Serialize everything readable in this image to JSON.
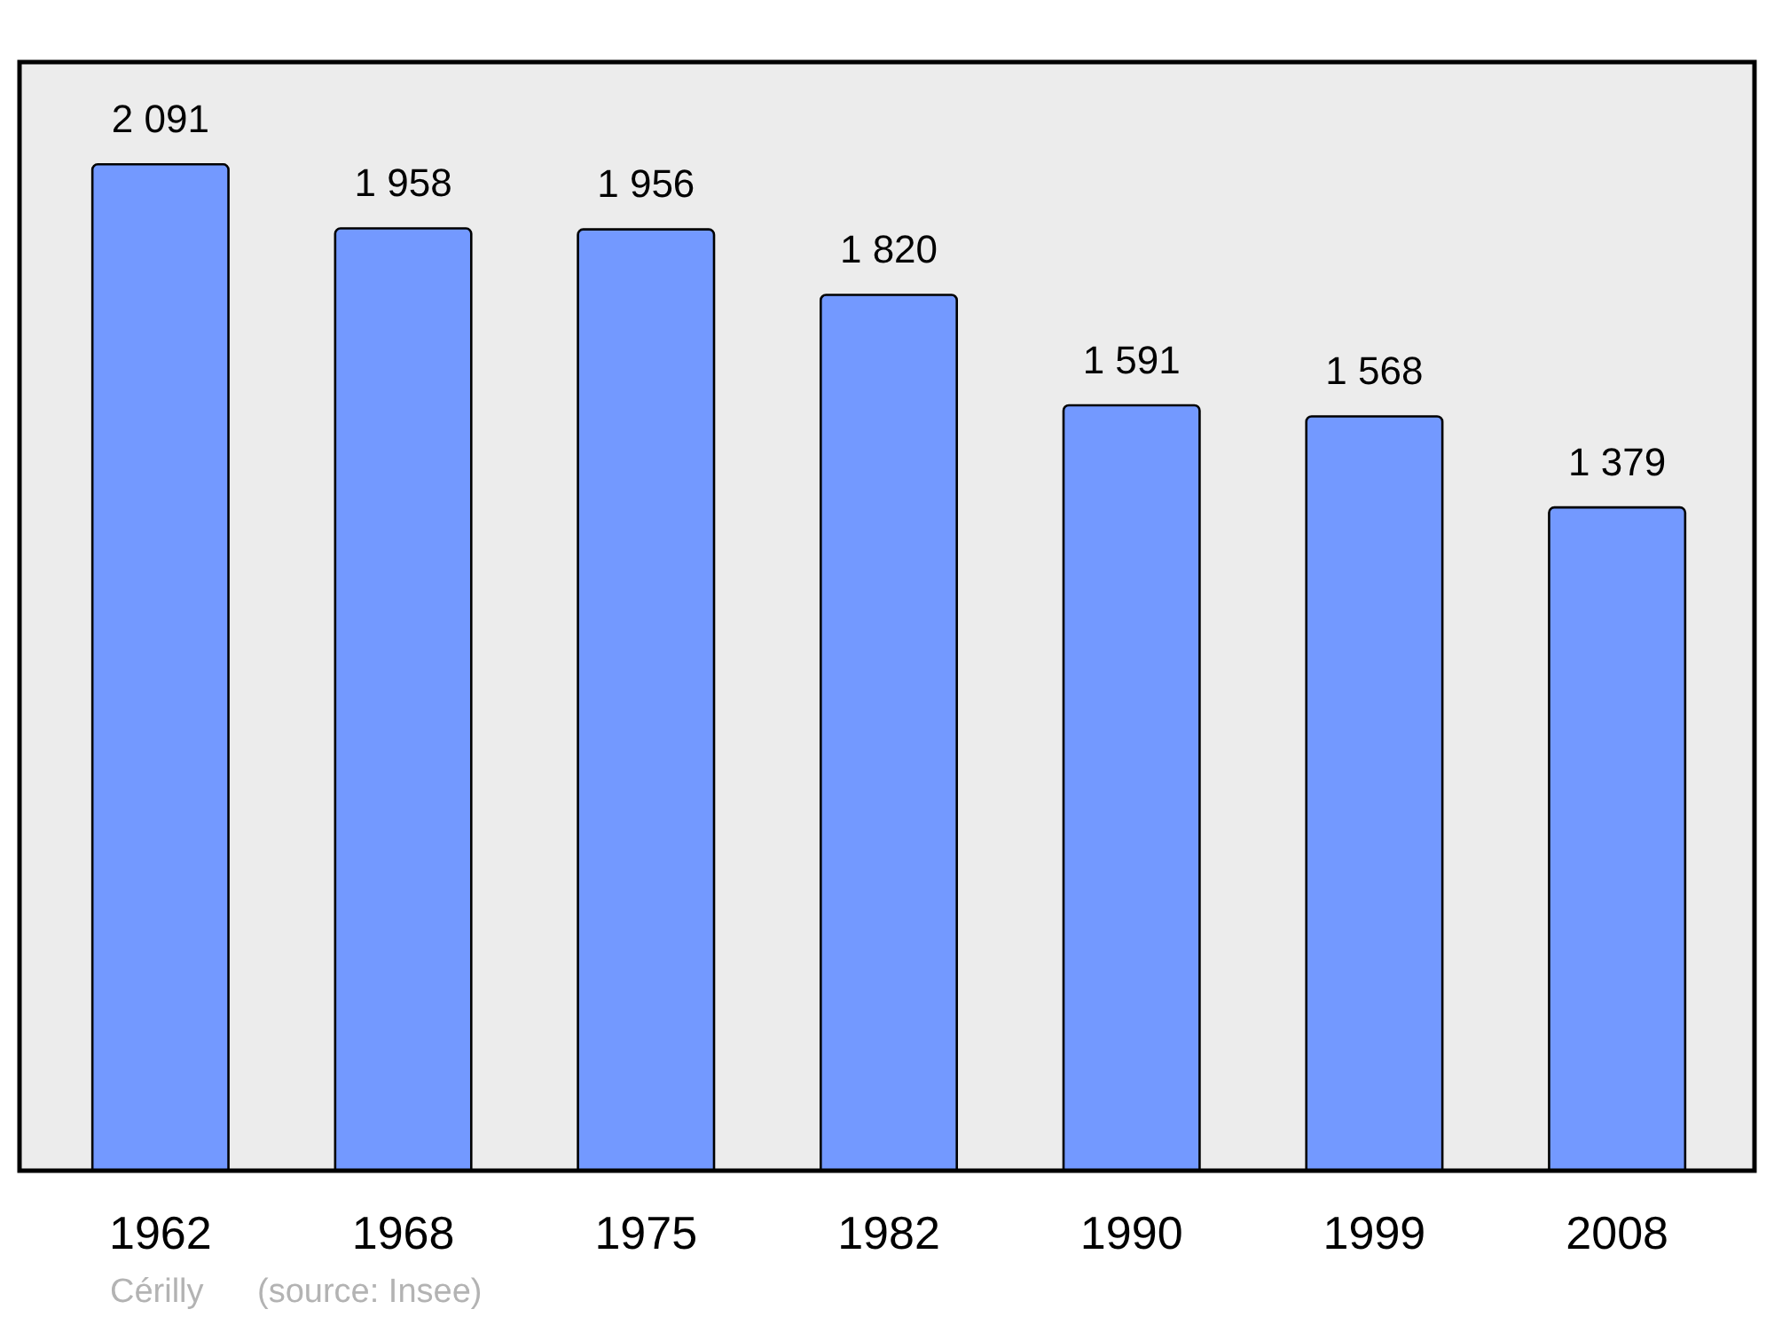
{
  "chart_data": {
    "type": "bar",
    "categories": [
      "1962",
      "1968",
      "1975",
      "1982",
      "1990",
      "1999",
      "2008"
    ],
    "values": [
      2091,
      1958,
      1956,
      1820,
      1591,
      1568,
      1379
    ],
    "value_labels": [
      "2 091",
      "1 958",
      "1 956",
      "1 820",
      "1 591",
      "1 568",
      "1 379"
    ],
    "color": "#7399ff",
    "annotations": [
      "Cérilly",
      "(source: Insee)"
    ]
  }
}
